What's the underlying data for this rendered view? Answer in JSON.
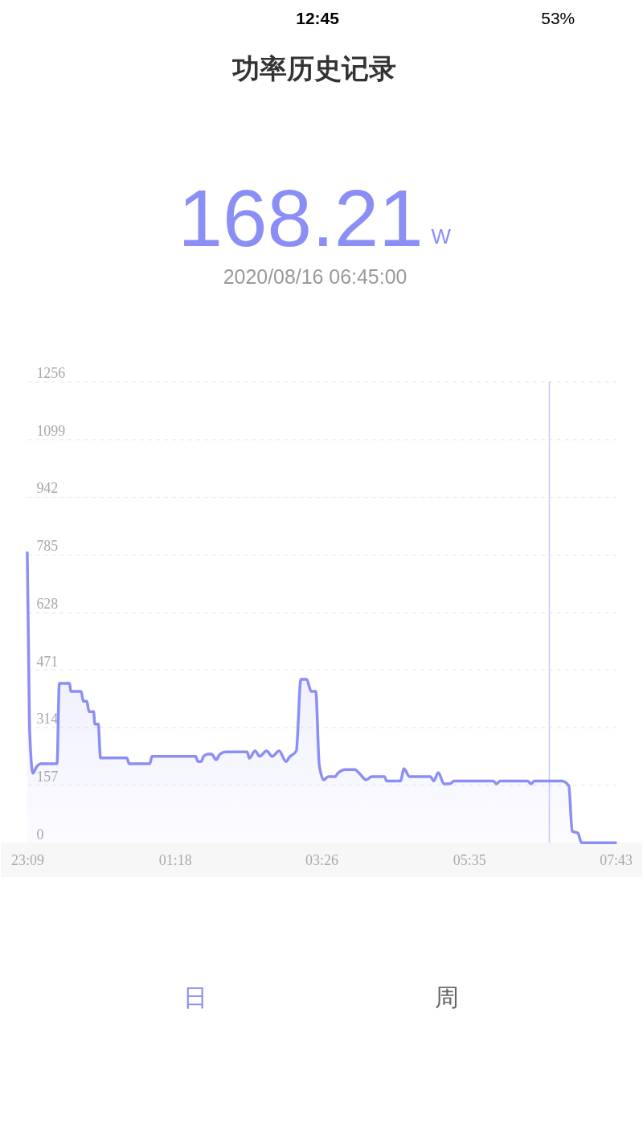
{
  "chart_data": {
    "type": "area",
    "title": "功率历史记录",
    "annotations": [
      "12:45",
      "53%",
      "168.21",
      "W",
      "2020/08/16 06:45:00",
      "日",
      "周"
    ],
    "x": [
      "2020-08-15T23:09",
      "2020-08-15T23:11",
      "2020-08-15T23:14",
      "2020-08-15T23:17",
      "2020-08-15T23:21",
      "2020-08-15T23:35",
      "2020-08-15T23:37",
      "2020-08-15T23:46",
      "2020-08-15T23:47",
      "2020-08-15T23:56",
      "2020-08-15T23:58",
      "2020-08-16T00:01",
      "2020-08-16T00:03",
      "2020-08-16T00:07",
      "2020-08-16T00:08",
      "2020-08-16T00:11",
      "2020-08-16T00:13",
      "2020-08-16T00:36",
      "2020-08-16T00:38",
      "2020-08-16T00:56",
      "2020-08-16T00:58",
      "2020-08-16T01:36",
      "2020-08-16T01:38",
      "2020-08-16T01:41",
      "2020-08-16T01:43",
      "2020-08-16T01:47",
      "2020-08-16T01:50",
      "2020-08-16T01:54",
      "2020-08-16T01:57",
      "2020-08-16T02:02",
      "2020-08-16T02:21",
      "2020-08-16T02:23",
      "2020-08-16T02:28",
      "2020-08-16T02:32",
      "2020-08-16T02:38",
      "2020-08-16T02:43",
      "2020-08-16T02:49",
      "2020-08-16T02:55",
      "2020-08-16T02:58",
      "2020-08-16T03:04",
      "2020-08-16T03:08",
      "2020-08-16T03:13",
      "2020-08-16T03:17",
      "2020-08-16T03:21",
      "2020-08-16T03:24",
      "2020-08-16T03:28",
      "2020-08-16T03:32",
      "2020-08-16T03:38",
      "2020-08-16T03:40",
      "2020-08-16T03:47",
      "2020-08-16T03:55",
      "2020-08-16T03:59",
      "2020-08-16T04:05",
      "2020-08-16T04:10",
      "2020-08-16T04:21",
      "2020-08-16T04:23",
      "2020-08-16T04:35",
      "2020-08-16T04:38",
      "2020-08-16T04:43",
      "2020-08-16T05:01",
      "2020-08-16T05:04",
      "2020-08-16T05:08",
      "2020-08-16T05:13",
      "2020-08-16T05:18",
      "2020-08-16T05:22",
      "2020-08-16T05:56",
      "2020-08-16T05:59",
      "2020-08-16T06:02",
      "2020-08-16T06:26",
      "2020-08-16T06:29",
      "2020-08-16T06:32",
      "2020-08-16T06:56",
      "2020-08-16T07:02",
      "2020-08-16T07:05",
      "2020-08-16T07:10",
      "2020-08-16T07:13",
      "2020-08-16T07:43"
    ],
    "series": [
      {
        "color": "#8b8ff5",
        "values": [
          790,
          312,
          189,
          206,
          215,
          215,
          434,
          434,
          412,
          412,
          385,
          385,
          357,
          357,
          323,
          323,
          231,
          231,
          215,
          215,
          235,
          235,
          221,
          221,
          235,
          241,
          241,
          226,
          240,
          247,
          247,
          230,
          250,
          235,
          250,
          235,
          250,
          221,
          233,
          250,
          445,
          445,
          412,
          412,
          213,
          171,
          180,
          180,
          188,
          199,
          199,
          189,
          171,
          180,
          180,
          168,
          168,
          201,
          180,
          180,
          168,
          191,
          160,
          160,
          168,
          168,
          160,
          168,
          168,
          160,
          168,
          168,
          155,
          31,
          26,
          0,
          0
        ]
      }
    ],
    "xlim": [
      "2020-08-15T23:09",
      "2020-08-16T07:43"
    ],
    "xticks": [
      {
        "value": "2020-08-15T23:09",
        "label": "23:09"
      },
      {
        "value": "2020-08-16T01:18",
        "label": "01:18"
      },
      {
        "value": "2020-08-16T03:26",
        "label": "03:26"
      },
      {
        "value": "2020-08-16T05:35",
        "label": "05:35"
      },
      {
        "value": "2020-08-16T07:43",
        "label": "07:43"
      }
    ],
    "ylim": [
      0,
      1256
    ],
    "yticks": [
      0,
      157,
      314,
      471,
      628,
      785,
      942,
      1099,
      1256
    ],
    "grid": "y",
    "ref_lines": [
      {
        "axis": "x",
        "value": "2020-08-16T06:45",
        "color": "#c6c9f4"
      }
    ]
  }
}
